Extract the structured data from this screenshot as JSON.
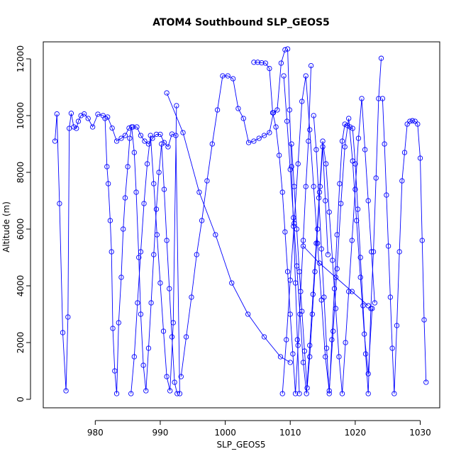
{
  "chart_data": {
    "type": "line",
    "title": "ATOM4 Southbound SLP_GEOS5",
    "xlabel": "SLP_GEOS5",
    "ylabel": "Altitude (m)",
    "xlim": [
      972,
      1033
    ],
    "ylim": [
      -300,
      12600
    ],
    "x_ticks": [
      980,
      990,
      1000,
      1010,
      1020,
      1030
    ],
    "x_tick_labels": [
      "980",
      "990",
      "1000",
      "1010",
      "1020",
      "1030"
    ],
    "y_ticks": [
      0,
      2000,
      4000,
      6000,
      8000,
      10000,
      12000
    ],
    "y_tick_labels": [
      "0",
      "2000",
      "4000",
      "6000",
      "8000",
      "10000",
      "12000"
    ],
    "marker": "open-circle",
    "grid": false,
    "legend": "none",
    "colors": {
      "series": "#0000ff",
      "axes": "#000000",
      "background": "#ffffff"
    },
    "series": [
      {
        "x": [
          973.8,
          974.1,
          974.5,
          975.0,
          975.5,
          975.8,
          976.0,
          976.3,
          976.7,
          977.1,
          977.4,
          977.8,
          978.3,
          978.9,
          979.6,
          980.4,
          981.2,
          981.9,
          982.6,
          983.3,
          984.0,
          984.6,
          985.2,
          985.8,
          986.4,
          987.0,
          987.6,
          988.2,
          988.8,
          989.4,
          990.0,
          990.6,
          991.2,
          991.8,
          992.4,
          993.0
        ],
        "y": [
          9100,
          10060,
          6900,
          2350,
          300,
          2900,
          9550,
          10080,
          9600,
          9550,
          9800,
          10000,
          10060,
          9900,
          9600,
          10050,
          10000,
          9950,
          9560,
          9100,
          9200,
          9300,
          9560,
          9600,
          9600,
          9300,
          9100,
          9000,
          9200,
          9340,
          9340,
          9050,
          8900,
          9350,
          9300,
          200
        ]
      },
      {
        "x": [
          981.5,
          981.8,
          982.0,
          982.3,
          982.5,
          982.7,
          983.0,
          983.3,
          983.6,
          984.0,
          984.3,
          984.6,
          985.0,
          985.3,
          985.6,
          986.0,
          986.3,
          986.7,
          987.0,
          987.4,
          987.8,
          988.2,
          988.6,
          989.0,
          989.4,
          989.8,
          990.2,
          990.6,
          991.0,
          991.4,
          991.8,
          992.2,
          992.6
        ],
        "y": [
          9900,
          8200,
          7600,
          6300,
          5200,
          2500,
          1000,
          200,
          2700,
          4300,
          6000,
          7100,
          8200,
          9200,
          9600,
          8700,
          7300,
          5000,
          3000,
          1200,
          300,
          1800,
          3400,
          5100,
          6700,
          8000,
          9000,
          7400,
          5600,
          3900,
          2200,
          600,
          200
        ]
      },
      {
        "x": [
          993.2,
          994.0,
          994.8,
          995.6,
          996.4,
          997.2,
          998.0,
          998.8,
          999.6,
          1000.4,
          1001.2,
          1002.0,
          1002.8,
          1003.6,
          1004.4,
          1005.2,
          1006.0,
          1006.8,
          1007.4,
          1008.0,
          1008.6,
          1009.2
        ],
        "y": [
          800,
          2200,
          3600,
          5100,
          6300,
          7700,
          9000,
          10200,
          11400,
          11400,
          11300,
          10250,
          9900,
          9050,
          9100,
          9200,
          9300,
          9400,
          10100,
          10200,
          11850,
          12320
        ]
      },
      {
        "x": [
          1004.4,
          1005.0,
          1005.6,
          1006.2,
          1006.8,
          1007.3,
          1007.8,
          1008.3,
          1008.8,
          1009.2,
          1009.6,
          1010.0,
          1010.4,
          1010.8,
          1011.2,
          1011.6,
          1012.0,
          1012.4,
          1012.8,
          1013.2
        ],
        "y": [
          11880,
          11880,
          11860,
          11850,
          11660,
          10100,
          9600,
          8600,
          7300,
          5900,
          4500,
          3000,
          1600,
          200,
          1900,
          3800,
          5600,
          7500,
          9100,
          11760
        ]
      },
      {
        "x": [
          1013.6,
          1014.0,
          1014.4,
          1014.8,
          1015.2,
          1015.6,
          1016.0,
          1016.4,
          1016.8,
          1017.2,
          1017.6,
          1018.0,
          1018.4,
          1018.8,
          1019.2,
          1019.6,
          1020.0,
          1020.4,
          1020.8,
          1021.2,
          1021.6,
          1022.0,
          1022.4,
          1022.8,
          1023.2,
          1023.6,
          1024.0
        ],
        "y": [
          10000,
          8800,
          7100,
          5300,
          3600,
          1800,
          200,
          2100,
          3900,
          5800,
          7600,
          9100,
          9700,
          9650,
          9600,
          9550,
          8300,
          6700,
          5000,
          3300,
          1600,
          200,
          3200,
          5200,
          7800,
          10600,
          12020
        ]
      },
      {
        "x": [
          1024.2,
          1024.5,
          1024.8,
          1025.1,
          1025.4,
          1025.7,
          1026.0,
          1026.4,
          1026.8,
          1027.2,
          1027.6,
          1028.0,
          1028.4,
          1028.8,
          1029.2,
          1029.6,
          1030.0,
          1030.3,
          1030.6,
          1030.9
        ],
        "y": [
          10600,
          9000,
          7200,
          5400,
          3600,
          1800,
          200,
          2600,
          5200,
          7700,
          8700,
          9700,
          9800,
          9820,
          9800,
          9700,
          8500,
          5600,
          2800,
          600
        ]
      },
      {
        "x": [
          985.5,
          986.0,
          986.5,
          987.0,
          987.5,
          988.0,
          988.5,
          989.0,
          989.5,
          990.0,
          990.5,
          991.0,
          991.5,
          992.0,
          992.5
        ],
        "y": [
          200,
          1500,
          3400,
          5200,
          6900,
          8300,
          9300,
          7600,
          5800,
          4100,
          2400,
          800,
          300,
          2700,
          10350
        ]
      },
      {
        "x": [
          991.0,
          993.5,
          996.0,
          998.5,
          1001.0,
          1003.5,
          1006.0,
          1008.5,
          1010.0
        ],
        "y": [
          10800,
          9400,
          7300,
          5800,
          4100,
          3000,
          2200,
          1500,
          1300
        ]
      },
      {
        "x": [
          1008.8,
          1009.4,
          1010.0,
          1010.6,
          1011.2,
          1011.8,
          1012.4,
          1013.0,
          1013.6,
          1014.2,
          1014.8,
          1015.4,
          1016.0,
          1016.6,
          1017.2,
          1017.8,
          1018.4,
          1019.0,
          1019.6,
          1020.2,
          1020.8,
          1021.4,
          1022.0,
          1022.6
        ],
        "y": [
          200,
          2100,
          4200,
          6200,
          8300,
          10500,
          11400,
          9500,
          7500,
          5500,
          3500,
          1500,
          300,
          2400,
          4600,
          6900,
          8900,
          9900,
          8400,
          6300,
          4300,
          2300,
          900,
          3200
        ]
      },
      {
        "x": [
          1009.0,
          1009.5,
          1010.0,
          1010.5,
          1011.0,
          1011.5,
          1012.0,
          1012.5,
          1013.0,
          1013.5,
          1014.0,
          1014.5,
          1015.0,
          1015.5,
          1016.0,
          1016.5,
          1017.0,
          1017.5,
          1018.0,
          1018.5,
          1019.0,
          1019.5,
          1020.0,
          1020.5,
          1021.0,
          1021.5,
          1022.0,
          1022.5,
          1023.0
        ],
        "y": [
          11400,
          9800,
          8100,
          6400,
          4700,
          3000,
          1300,
          200,
          1900,
          3700,
          5500,
          7300,
          9100,
          8300,
          6600,
          4900,
          3200,
          1500,
          200,
          2000,
          3800,
          5600,
          7400,
          9200,
          10600,
          8800,
          7000,
          5200,
          3400
        ]
      },
      {
        "x": [
          1010.2,
          1010.6,
          1011.0,
          1011.4,
          1011.8,
          1012.2,
          1012.6,
          1013.0,
          1013.4,
          1013.8,
          1014.2,
          1014.6,
          1015.0,
          1015.4,
          1015.8
        ],
        "y": [
          9000,
          7500,
          6000,
          4500,
          3100,
          1700,
          400,
          1500,
          3000,
          4500,
          6000,
          7500,
          8900,
          7000,
          5100
        ]
      },
      {
        "x": [
          1009.6,
          1009.9,
          1010.2,
          1010.5,
          1010.8,
          1011.1,
          1011.4
        ],
        "y": [
          12350,
          10200,
          8200,
          6100,
          4100,
          2100,
          200
        ]
      },
      {
        "x": [
          1012.0,
          1014.5,
          1017.0,
          1019.5,
          1022.0
        ],
        "y": [
          5400,
          4800,
          4300,
          3800,
          3300
        ]
      }
    ]
  }
}
